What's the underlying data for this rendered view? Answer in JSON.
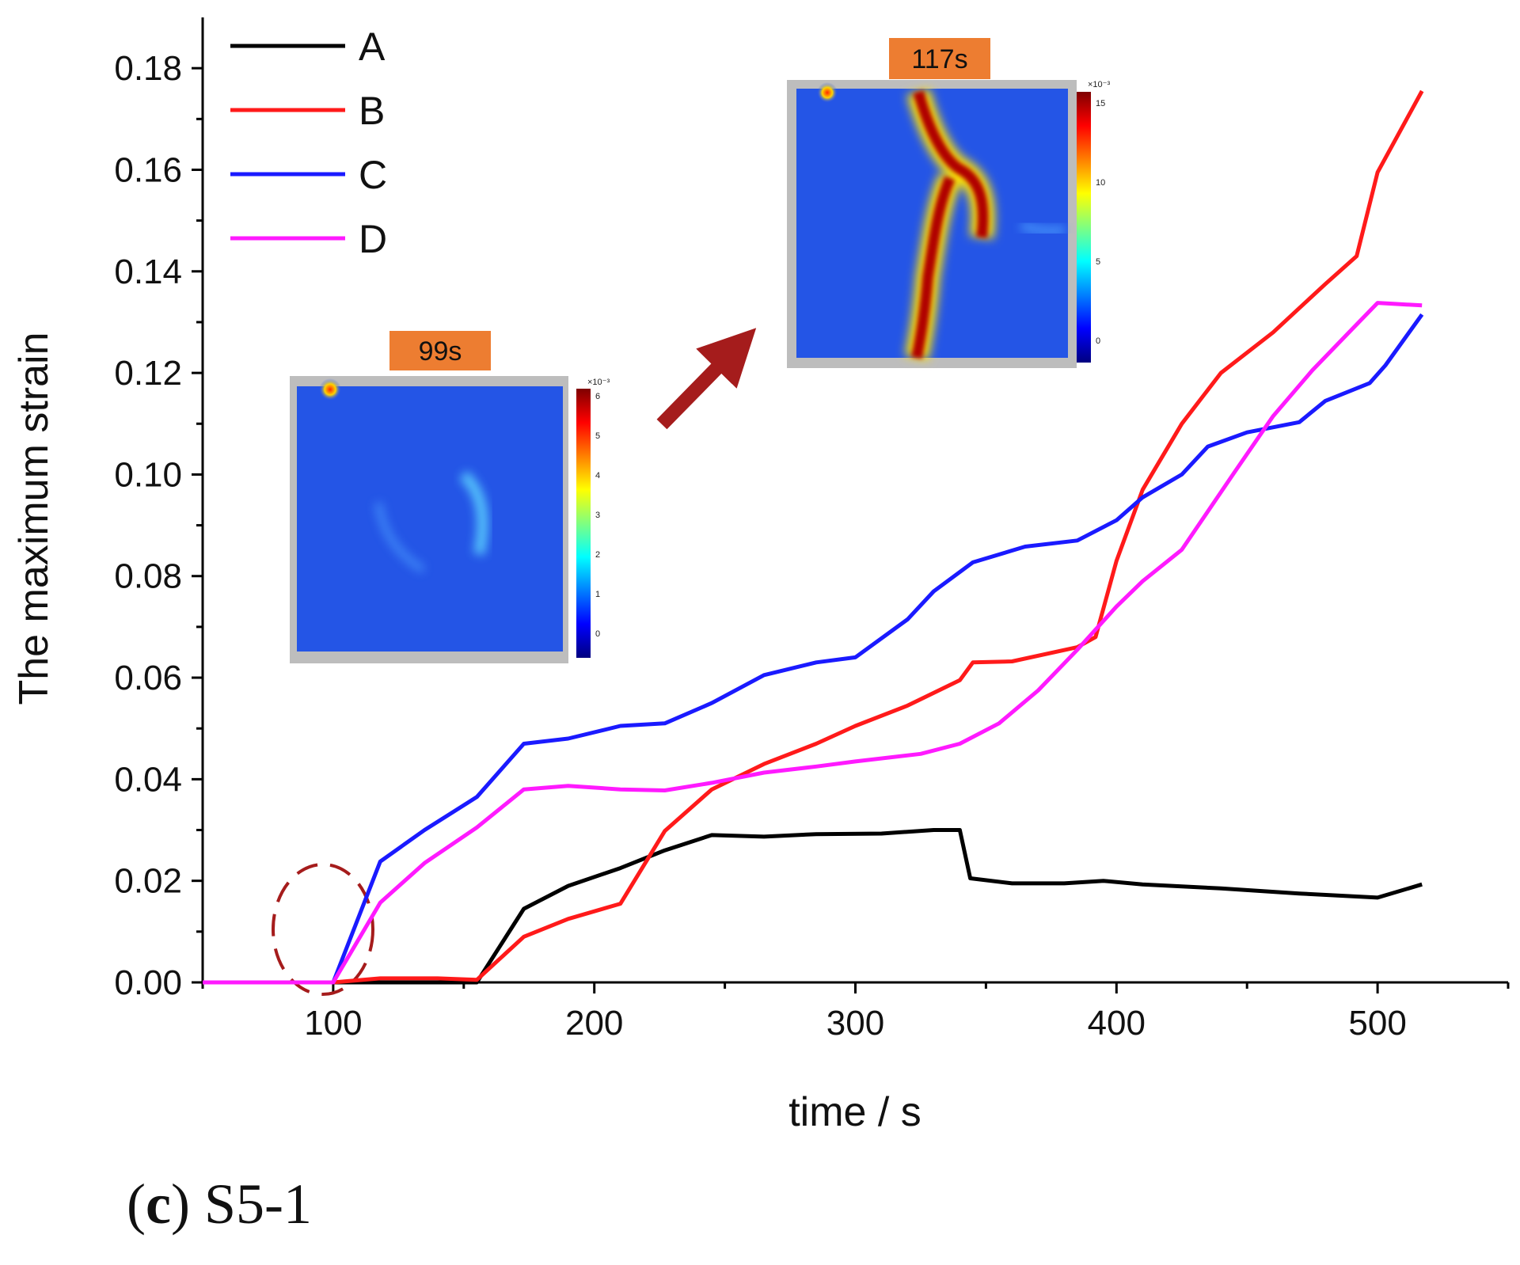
{
  "chart_data": {
    "type": "line",
    "xlabel": "time / s",
    "ylabel": "The maximum strain",
    "xlim": [
      50,
      550
    ],
    "ylim": [
      0,
      0.19
    ],
    "x_ticks": [
      "100",
      "200",
      "300",
      "400",
      "500"
    ],
    "y_ticks": [
      "0.00",
      "0.02",
      "0.04",
      "0.06",
      "0.08",
      "0.10",
      "0.12",
      "0.14",
      "0.16",
      "0.18"
    ],
    "legend_position": "top-left",
    "series": [
      {
        "name": "A",
        "color": "#000000",
        "points": [
          [
            50,
            0
          ],
          [
            155,
            0
          ],
          [
            173,
            0.0145
          ],
          [
            190,
            0.019
          ],
          [
            210,
            0.0225
          ],
          [
            227,
            0.026
          ],
          [
            245,
            0.029
          ],
          [
            265,
            0.0287
          ],
          [
            285,
            0.0292
          ],
          [
            310,
            0.0293
          ],
          [
            330,
            0.03
          ],
          [
            340,
            0.03
          ],
          [
            344,
            0.0205
          ],
          [
            360,
            0.0195
          ],
          [
            380,
            0.0195
          ],
          [
            395,
            0.02
          ],
          [
            410,
            0.0193
          ],
          [
            440,
            0.0185
          ],
          [
            470,
            0.0175
          ],
          [
            500,
            0.0167
          ],
          [
            517,
            0.0193
          ]
        ]
      },
      {
        "name": "B",
        "color": "#ff1a1a",
        "points": [
          [
            50,
            0
          ],
          [
            100,
            0
          ],
          [
            118,
            0.0008
          ],
          [
            140,
            0.0008
          ],
          [
            155,
            0.0005
          ],
          [
            173,
            0.009
          ],
          [
            190,
            0.0125
          ],
          [
            210,
            0.0155
          ],
          [
            227,
            0.0298
          ],
          [
            245,
            0.038
          ],
          [
            265,
            0.043
          ],
          [
            285,
            0.047
          ],
          [
            300,
            0.0505
          ],
          [
            320,
            0.0545
          ],
          [
            340,
            0.0595
          ],
          [
            345,
            0.063
          ],
          [
            360,
            0.0632
          ],
          [
            385,
            0.066
          ],
          [
            392,
            0.068
          ],
          [
            400,
            0.083
          ],
          [
            410,
            0.097
          ],
          [
            425,
            0.11
          ],
          [
            440,
            0.12
          ],
          [
            460,
            0.128
          ],
          [
            480,
            0.1375
          ],
          [
            492,
            0.143
          ],
          [
            500,
            0.1595
          ],
          [
            517,
            0.1755
          ]
        ]
      },
      {
        "name": "C",
        "color": "#1a1aff",
        "points": [
          [
            50,
            0
          ],
          [
            100,
            0
          ],
          [
            118,
            0.0238
          ],
          [
            135,
            0.03
          ],
          [
            155,
            0.0365
          ],
          [
            173,
            0.047
          ],
          [
            190,
            0.048
          ],
          [
            210,
            0.0505
          ],
          [
            227,
            0.051
          ],
          [
            245,
            0.055
          ],
          [
            265,
            0.0605
          ],
          [
            285,
            0.063
          ],
          [
            300,
            0.064
          ],
          [
            320,
            0.0715
          ],
          [
            330,
            0.077
          ],
          [
            345,
            0.0827
          ],
          [
            365,
            0.0858
          ],
          [
            385,
            0.087
          ],
          [
            400,
            0.091
          ],
          [
            410,
            0.0955
          ],
          [
            425,
            0.1
          ],
          [
            435,
            0.1055
          ],
          [
            450,
            0.1083
          ],
          [
            470,
            0.1103
          ],
          [
            480,
            0.1145
          ],
          [
            497,
            0.118
          ],
          [
            503,
            0.1215
          ],
          [
            517,
            0.1315
          ]
        ]
      },
      {
        "name": "D",
        "color": "#ff1aff",
        "points": [
          [
            50,
            0
          ],
          [
            100,
            0
          ],
          [
            118,
            0.0157
          ],
          [
            135,
            0.0235
          ],
          [
            155,
            0.0305
          ],
          [
            173,
            0.038
          ],
          [
            190,
            0.0387
          ],
          [
            210,
            0.038
          ],
          [
            227,
            0.0378
          ],
          [
            245,
            0.0393
          ],
          [
            265,
            0.0413
          ],
          [
            285,
            0.0425
          ],
          [
            300,
            0.0435
          ],
          [
            325,
            0.045
          ],
          [
            340,
            0.047
          ],
          [
            355,
            0.051
          ],
          [
            370,
            0.0575
          ],
          [
            385,
            0.0655
          ],
          [
            400,
            0.074
          ],
          [
            410,
            0.079
          ],
          [
            425,
            0.0852
          ],
          [
            445,
            0.1003
          ],
          [
            460,
            0.1115
          ],
          [
            475,
            0.1205
          ],
          [
            490,
            0.1285
          ],
          [
            500,
            0.1338
          ],
          [
            517,
            0.1333
          ]
        ]
      }
    ],
    "annotations": {
      "inset1_label": "99s",
      "inset2_label": "117s",
      "inset1_scale": {
        "exponent": "×10⁻³",
        "ticks": [
          "6",
          "5",
          "4",
          "3",
          "2",
          "1",
          "0"
        ]
      },
      "inset2_scale": {
        "exponent": "×10⁻³",
        "ticks": [
          "15",
          "10",
          "5",
          "0"
        ]
      },
      "label_box_color": "#ed7d31",
      "arrow_color": "#a51c1c",
      "highlight_circle_color": "#a51c1c"
    }
  },
  "caption": {
    "letter": "c",
    "text": "S5-1"
  }
}
